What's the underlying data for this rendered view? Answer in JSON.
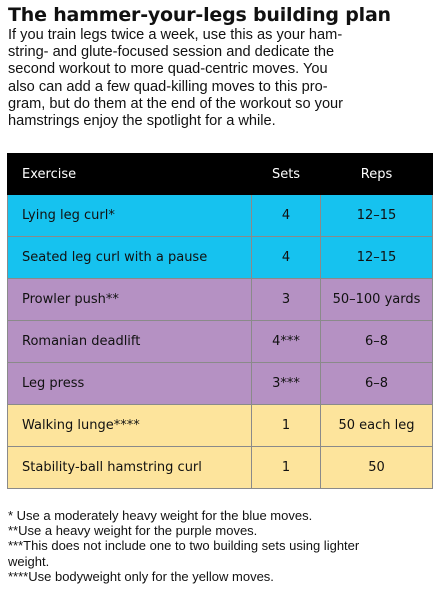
{
  "title": "The hammer-your-legs building plan",
  "intro_lines": [
    "If you train legs twice a week, use this as your ham-",
    "string- and glute-focused session and dedicate the",
    "second workout to more quad-centric moves. You",
    "also can add a few quad-killing moves to this pro-",
    "gram, but do them at the end of the workout so your",
    "hamstrings enjoy the spotlight for a while."
  ],
  "colors": {
    "header": "#000000",
    "blue": "#16c2ef",
    "purple": "#b591c3",
    "yellow": "#fde49c"
  },
  "table": {
    "headers": [
      "Exercise",
      "Sets",
      "Reps"
    ],
    "rows": [
      {
        "exercise": "Lying leg curl*",
        "sets": "4",
        "reps": "12–15",
        "group": "blue"
      },
      {
        "exercise": "Seated leg curl with a pause",
        "sets": "4",
        "reps": "12–15",
        "group": "blue"
      },
      {
        "exercise": "Prowler push**",
        "sets": "3",
        "reps": "50–100 yards",
        "group": "purple"
      },
      {
        "exercise": "Romanian deadlift",
        "sets": "4***",
        "reps": "6–8",
        "group": "purple"
      },
      {
        "exercise": "Leg press",
        "sets": "3***",
        "reps": "6–8",
        "group": "purple"
      },
      {
        "exercise": "Walking lunge****",
        "sets": "1",
        "reps": "50 each leg",
        "group": "yellow"
      },
      {
        "exercise": "Stability-ball hamstring curl",
        "sets": "1",
        "reps": "50",
        "group": "yellow"
      }
    ]
  },
  "footnote_lines": [
    "* Use a moderately heavy weight for the blue moves.",
    "**Use a heavy weight for the purple moves.",
    "***This does not include one to two building sets using lighter",
    "weight.",
    "****Use bodyweight only for the yellow moves."
  ]
}
